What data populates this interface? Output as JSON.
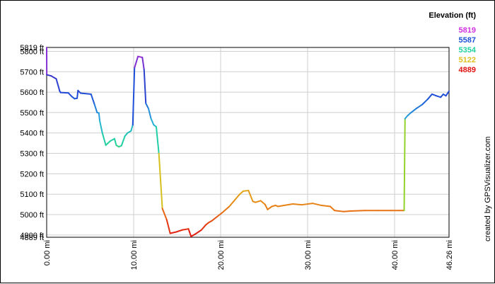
{
  "chart_data": {
    "type": "line",
    "x_unit": "mi",
    "y_unit": "ft",
    "xlim": [
      0,
      46.26
    ],
    "ylim": [
      4889,
      5819
    ],
    "x_ticks": [
      0,
      10,
      20,
      30,
      40,
      46.26
    ],
    "x_tick_labels": [
      "0.00 mi",
      "10.00 mi",
      "20.00 mi",
      "30.00 mi",
      "40.00 mi",
      "46.26 mi"
    ],
    "y_ticks": [
      4889,
      4900,
      5000,
      5100,
      5200,
      5300,
      5400,
      5500,
      5600,
      5700,
      5800,
      5819
    ],
    "y_tick_labels": [
      "4889 ft",
      "4900 ft",
      "5000 ft",
      "5100 ft",
      "5200 ft",
      "5300 ft",
      "5400 ft",
      "5500 ft",
      "5600 ft",
      "5700 ft",
      "5800 ft",
      "5819 ft"
    ],
    "grid": true,
    "legend": {
      "title": "Elevation (ft)",
      "placement": "top-right",
      "entries": [
        {
          "label": "5819",
          "color": "#d030e0"
        },
        {
          "label": "5587",
          "color": "#1e50d8"
        },
        {
          "label": "5354",
          "color": "#22d2a0"
        },
        {
          "label": "5122",
          "color": "#e0c020"
        },
        {
          "label": "4889",
          "color": "#e01010"
        }
      ]
    },
    "series": [
      {
        "x": [
          0,
          0.01,
          0.5,
          1.1,
          1.5,
          1.6,
          2.5,
          2.9,
          3.2,
          3.5,
          3.6,
          3.9,
          5.1,
          5.5,
          5.8,
          6.0,
          6.1,
          6.4,
          6.8,
          7.3,
          7.8,
          8.0,
          8.3,
          8.6,
          9.0,
          9.3,
          9.7,
          9.9,
          10.1,
          10.5,
          11.0,
          11.2,
          11.4,
          11.7,
          12.0,
          12.3,
          12.6,
          12.9,
          13.3,
          13.8,
          14.2,
          14.9,
          15.6,
          16.3,
          16.4,
          16.6,
          17.1,
          17.8,
          18.3,
          18.6,
          19.0,
          19.6,
          20.2,
          21.0,
          21.7,
          22.2,
          22.6,
          23.2,
          23.7,
          24.0,
          24.6,
          25.1,
          25.4,
          25.9,
          26.3,
          26.6,
          27.3,
          28.3,
          29.3,
          30.6,
          31.6,
          32.6,
          33.1,
          34.1,
          35.1,
          36.6,
          38.1,
          39.6,
          40.5,
          41.1,
          41.2,
          41.5,
          41.9,
          42.5,
          43.2,
          43.8,
          44.3,
          44.8,
          45.3,
          45.6,
          45.9,
          46.26
        ],
        "y": [
          5819,
          5685,
          5680,
          5665,
          5605,
          5598,
          5596,
          5578,
          5568,
          5570,
          5608,
          5595,
          5590,
          5540,
          5500,
          5498,
          5460,
          5400,
          5340,
          5360,
          5372,
          5340,
          5332,
          5338,
          5385,
          5400,
          5410,
          5440,
          5720,
          5775,
          5770,
          5710,
          5545,
          5520,
          5470,
          5440,
          5430,
          5300,
          5030,
          4975,
          4908,
          4915,
          4925,
          4930,
          4918,
          4893,
          4905,
          4925,
          4950,
          4960,
          4970,
          4990,
          5010,
          5040,
          5075,
          5100,
          5115,
          5118,
          5065,
          5060,
          5068,
          5050,
          5025,
          5040,
          5045,
          5040,
          5045,
          5052,
          5048,
          5055,
          5045,
          5040,
          5020,
          5015,
          5018,
          5020,
          5020,
          5020,
          5020,
          5020,
          5470,
          5485,
          5500,
          5520,
          5540,
          5565,
          5590,
          5582,
          5575,
          5590,
          5582,
          5605
        ]
      }
    ]
  },
  "credit_text": "created by GPSVisualizer.com"
}
